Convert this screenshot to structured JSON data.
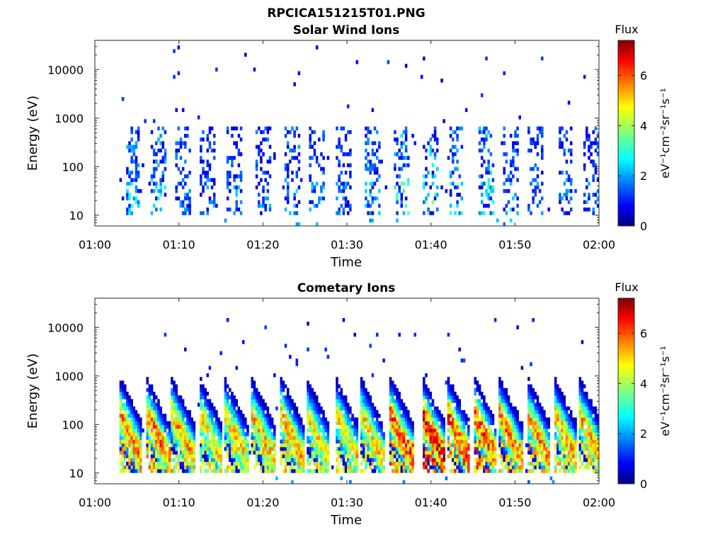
{
  "figure_title": "RPCICA151215T01.PNG",
  "chart_data": [
    {
      "type": "heatmap",
      "title": "Solar Wind Ions",
      "xlabel": "Time",
      "ylabel": "Energy (eV)",
      "x_ticks": [
        "01:00",
        "01:10",
        "01:20",
        "01:30",
        "01:40",
        "01:50",
        "02:00"
      ],
      "x_range_minutes": [
        0,
        60
      ],
      "y_scale": "log",
      "y_ticks": [
        "10",
        "100",
        "1000",
        "10000"
      ],
      "y_range_eV": [
        6,
        40000
      ],
      "colorbar": {
        "label": "Flux",
        "unit_label": "eV⁻¹cm⁻²sr⁻¹s⁻¹",
        "ticks": [
          "0",
          "2",
          "4",
          "6"
        ],
        "range": [
          0,
          7.4
        ],
        "colormap": "jet"
      },
      "data_start_minute": 3,
      "data_end_minute": 60,
      "bursts": [
        {
          "t": 4.5,
          "peak": 3.3
        },
        {
          "t": 7.5,
          "peak": 3.1
        },
        {
          "t": 10.5,
          "peak": 2.6
        },
        {
          "t": 13.5,
          "peak": 2.4
        },
        {
          "t": 16.5,
          "peak": 2.5
        },
        {
          "t": 20.0,
          "peak": 2.4
        },
        {
          "t": 23.5,
          "peak": 2.7
        },
        {
          "t": 26.5,
          "peak": 2.5
        },
        {
          "t": 29.5,
          "peak": 2.3
        },
        {
          "t": 33.0,
          "peak": 2.8
        },
        {
          "t": 36.5,
          "peak": 3.7
        },
        {
          "t": 40.0,
          "peak": 3.8
        },
        {
          "t": 43.0,
          "peak": 3.5
        },
        {
          "t": 46.5,
          "peak": 3.5
        },
        {
          "t": 49.5,
          "peak": 2.6
        },
        {
          "t": 52.5,
          "peak": 2.4
        },
        {
          "t": 56.0,
          "peak": 2.4
        },
        {
          "t": 59.0,
          "peak": 2.4
        }
      ]
    },
    {
      "type": "heatmap",
      "title": "Cometary Ions",
      "xlabel": "Time",
      "ylabel": "Energy (eV)",
      "x_ticks": [
        "01:00",
        "01:10",
        "01:20",
        "01:30",
        "01:40",
        "01:50",
        "02:00"
      ],
      "x_range_minutes": [
        0,
        60
      ],
      "y_scale": "log",
      "y_ticks": [
        "10",
        "100",
        "1000",
        "10000"
      ],
      "y_range_eV": [
        6,
        40000
      ],
      "colorbar": {
        "label": "Flux",
        "unit_label": "eV⁻¹cm⁻²sr⁻¹s⁻¹",
        "ticks": [
          "0",
          "2",
          "4",
          "6"
        ],
        "range": [
          0,
          7.4
        ],
        "colormap": "jet"
      },
      "data_start_minute": 3,
      "data_end_minute": 60,
      "bursts": [
        {
          "t": 4.3,
          "peak": 5.6
        },
        {
          "t": 7.5,
          "peak": 5.7
        },
        {
          "t": 10.5,
          "peak": 5.4
        },
        {
          "t": 13.8,
          "peak": 5.0
        },
        {
          "t": 16.8,
          "peak": 5.0
        },
        {
          "t": 20.0,
          "peak": 5.2
        },
        {
          "t": 23.5,
          "peak": 5.3
        },
        {
          "t": 26.5,
          "peak": 5.0
        },
        {
          "t": 30.0,
          "peak": 5.0
        },
        {
          "t": 33.0,
          "peak": 5.0
        },
        {
          "t": 36.5,
          "peak": 6.0
        },
        {
          "t": 40.3,
          "peak": 6.8
        },
        {
          "t": 43.3,
          "peak": 6.2
        },
        {
          "t": 46.5,
          "peak": 6.2
        },
        {
          "t": 49.5,
          "peak": 5.6
        },
        {
          "t": 52.8,
          "peak": 5.4
        },
        {
          "t": 56.0,
          "peak": 5.2
        },
        {
          "t": 59.0,
          "peak": 5.2
        }
      ]
    }
  ]
}
